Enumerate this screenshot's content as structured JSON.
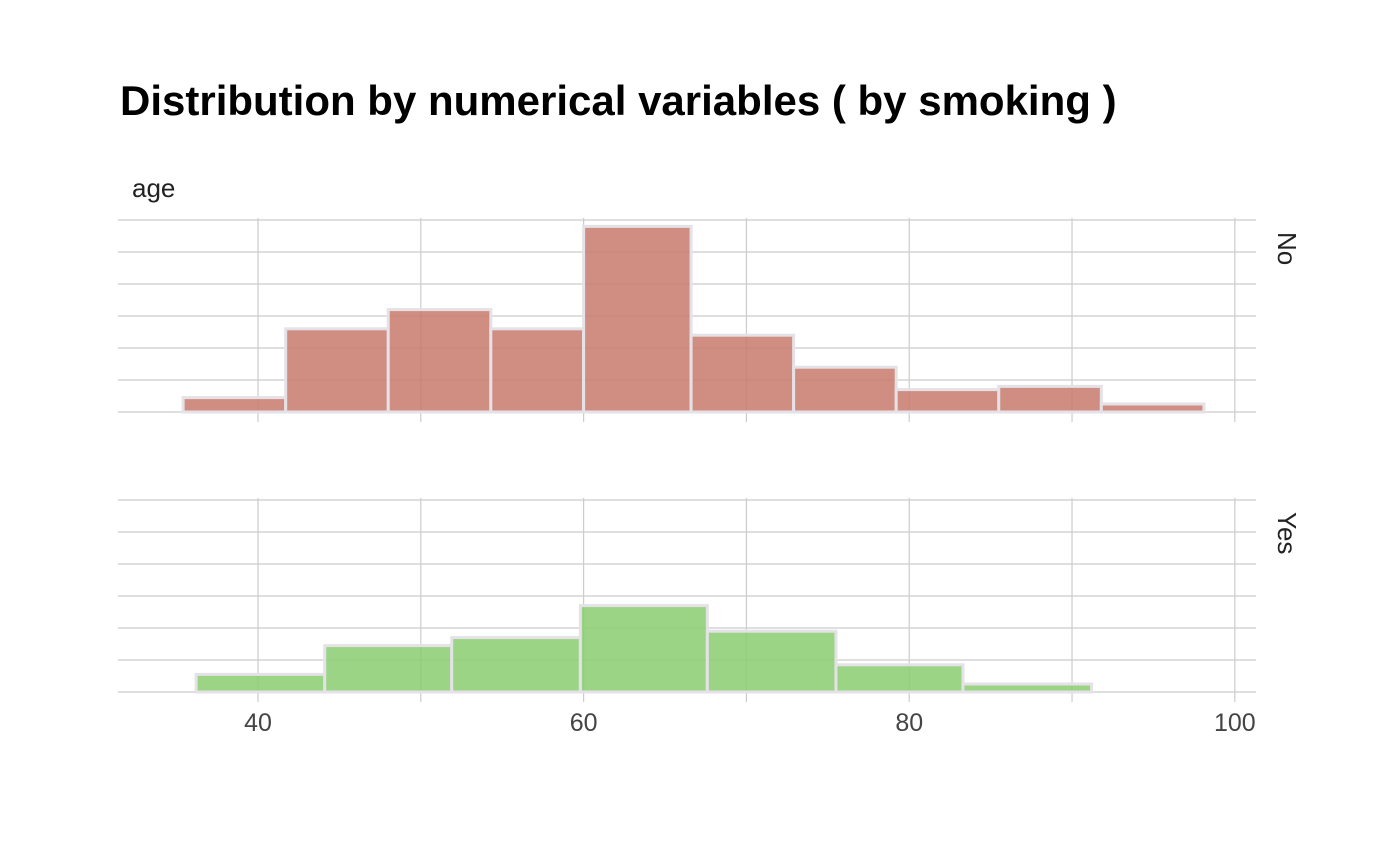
{
  "chart_data": {
    "type": "histogram",
    "title": "Distribution by numerical variables ( by smoking )",
    "variable": "age",
    "xlim": [
      31.4,
      101.3
    ],
    "xticks": [
      40,
      60,
      80,
      100
    ],
    "grid": true,
    "show_y_tick_labels": false,
    "facets": [
      {
        "label": "No",
        "color": "#c87a6c",
        "ylim": [
          0,
          6
        ],
        "bins": [
          {
            "x0": 35.4,
            "x1": 41.7,
            "count": 0.45
          },
          {
            "x0": 41.7,
            "x1": 48.0,
            "count": 2.6
          },
          {
            "x0": 48.0,
            "x1": 54.3,
            "count": 3.2
          },
          {
            "x0": 54.3,
            "x1": 60.0,
            "count": 2.6
          },
          {
            "x0": 60.0,
            "x1": 66.6,
            "count": 5.8
          },
          {
            "x0": 66.6,
            "x1": 72.9,
            "count": 2.4
          },
          {
            "x0": 72.9,
            "x1": 79.2,
            "count": 1.4
          },
          {
            "x0": 79.2,
            "x1": 85.5,
            "count": 0.7
          },
          {
            "x0": 85.5,
            "x1": 91.8,
            "count": 0.8
          },
          {
            "x0": 91.8,
            "x1": 98.1,
            "count": 0.25
          }
        ]
      },
      {
        "label": "Yes",
        "color": "#88cc6e",
        "ylim": [
          0,
          6
        ],
        "bins": [
          {
            "x0": 36.2,
            "x1": 44.1,
            "count": 0.55
          },
          {
            "x0": 44.1,
            "x1": 51.9,
            "count": 1.45
          },
          {
            "x0": 51.9,
            "x1": 59.8,
            "count": 1.7
          },
          {
            "x0": 59.8,
            "x1": 67.6,
            "count": 2.7
          },
          {
            "x0": 67.6,
            "x1": 75.5,
            "count": 1.9
          },
          {
            "x0": 75.5,
            "x1": 83.3,
            "count": 0.85
          },
          {
            "x0": 83.3,
            "x1": 91.2,
            "count": 0.25
          },
          {
            "x0": 91.2,
            "x1": 99.0,
            "count": 0
          }
        ]
      }
    ]
  }
}
